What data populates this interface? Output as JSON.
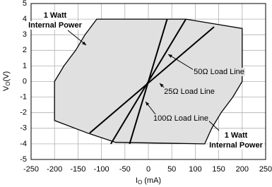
{
  "chart_data": {
    "type": "line",
    "xlabel": [
      "I",
      "O",
      " (mA)"
    ],
    "ylabel": [
      "V",
      "O",
      "(V)"
    ],
    "xlim": [
      -250,
      250
    ],
    "xticks": [
      -250,
      -200,
      -150,
      -100,
      -50,
      0,
      50,
      100,
      150,
      200,
      250
    ],
    "ylim": [
      -5,
      5
    ],
    "yticks": [
      -5,
      -4,
      -3,
      -2,
      -1,
      0,
      1,
      2,
      3,
      4,
      5
    ],
    "grid": true,
    "series": [
      {
        "name": "1 Watt Internal Power",
        "color": "#000000",
        "fill": "#e0e0e0",
        "x": [
          -200,
          -180,
          -155,
          -135,
          -110,
          80,
          140,
          200,
          200,
          180,
          155,
          135,
          120,
          -70,
          -130,
          -200,
          -200
        ],
        "y": [
          0,
          1,
          2,
          3,
          4,
          4,
          3.7,
          3.4,
          0,
          -1,
          -2,
          -3,
          -4,
          -3.9,
          -3.3,
          -2.5,
          0
        ]
      },
      {
        "name": "100Ω",
        "color": "#000000",
        "x": [
          -40,
          40
        ],
        "y": [
          -4,
          4
        ]
      },
      {
        "name": "50Ω",
        "color": "#000000",
        "x": [
          -80,
          80
        ],
        "y": [
          -4,
          4
        ]
      },
      {
        "name": "25Ω",
        "color": "#000000",
        "x": [
          -125,
          140
        ],
        "y": [
          -3.3,
          3.5
        ]
      }
    ],
    "annotations": [
      {
        "lines": [
          "1 Watt",
          "Internal Power"
        ]
      },
      {
        "lines": [
          "1 Watt",
          "Internal Power"
        ]
      },
      {
        "lines": [
          "50Ω  Load Line"
        ]
      },
      {
        "lines": [
          "25Ω  Load Line"
        ]
      },
      {
        "lines": [
          "100Ω  Load Line"
        ]
      }
    ]
  }
}
